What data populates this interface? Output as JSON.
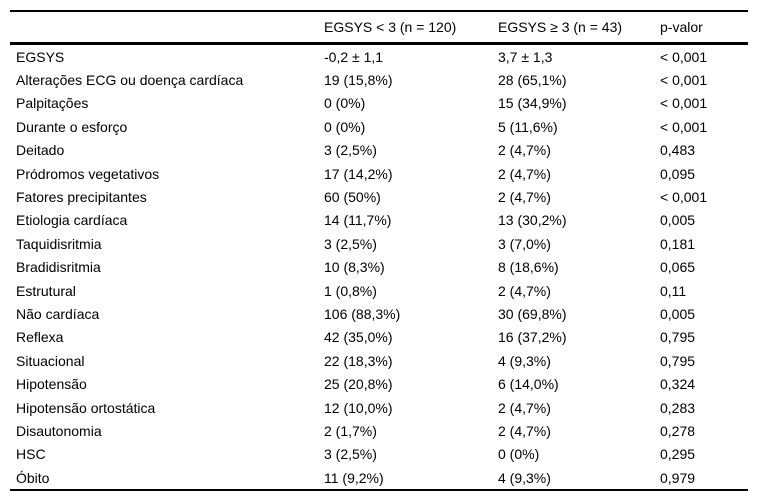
{
  "table": {
    "columns": [
      "",
      "EGSYS < 3 (n = 120)",
      "EGSYS ≥ 3 (n = 43)",
      "p-valor"
    ],
    "rows": [
      [
        "EGSYS",
        "-0,2 ± 1,1",
        "3,7 ± 1,3",
        "< 0,001"
      ],
      [
        "Alterações ECG ou doença cardíaca",
        "19 (15,8%)",
        "28 (65,1%)",
        "< 0,001"
      ],
      [
        "Palpitações",
        "0 (0%)",
        "15 (34,9%)",
        "< 0,001"
      ],
      [
        "Durante o esforço",
        "0 (0%)",
        "5 (11,6%)",
        "< 0,001"
      ],
      [
        "Deitado",
        "3 (2,5%)",
        "2 (4,7%)",
        "0,483"
      ],
      [
        "Pródromos vegetativos",
        "17 (14,2%)",
        "2 (4,7%)",
        "0,095"
      ],
      [
        "Fatores precipitantes",
        "60 (50%)",
        "2 (4,7%)",
        "< 0,001"
      ],
      [
        "Etiologia cardíaca",
        "14 (11,7%)",
        "13 (30,2%)",
        "0,005"
      ],
      [
        "Taquidisritmia",
        "3 (2,5%)",
        "3 (7,0%)",
        "0,181"
      ],
      [
        "Bradidisritmia",
        "10 (8,3%)",
        "8 (18,6%)",
        "0,065"
      ],
      [
        "Estrutural",
        "1 (0,8%)",
        "2 (4,7%)",
        "0,11"
      ],
      [
        "Não cardíaca",
        "106 (88,3%)",
        "30 (69,8%)",
        "0,005"
      ],
      [
        "Reflexa",
        "42 (35,0%)",
        "16 (37,2%)",
        "0,795"
      ],
      [
        "Situacional",
        "22 (18,3%)",
        "4 (9,3%)",
        "0,795"
      ],
      [
        "Hipotensão",
        "25 (20,8%)",
        "6 (14,0%)",
        "0,324"
      ],
      [
        "Hipotensão ortostática",
        "12 (10,0%)",
        "2 (4,7%)",
        "0,283"
      ],
      [
        "Disautonomia",
        "2 (1,7%)",
        "2 (4,7%)",
        "0,278"
      ],
      [
        "HSC",
        "3 (2,5%)",
        "0 (0%)",
        "0,295"
      ],
      [
        "Óbito",
        "11 (9,2%)",
        "4 (9,3%)",
        "0,979"
      ]
    ]
  },
  "colors": {
    "text": "#000000",
    "border": "#000000",
    "background": "#ffffff"
  }
}
